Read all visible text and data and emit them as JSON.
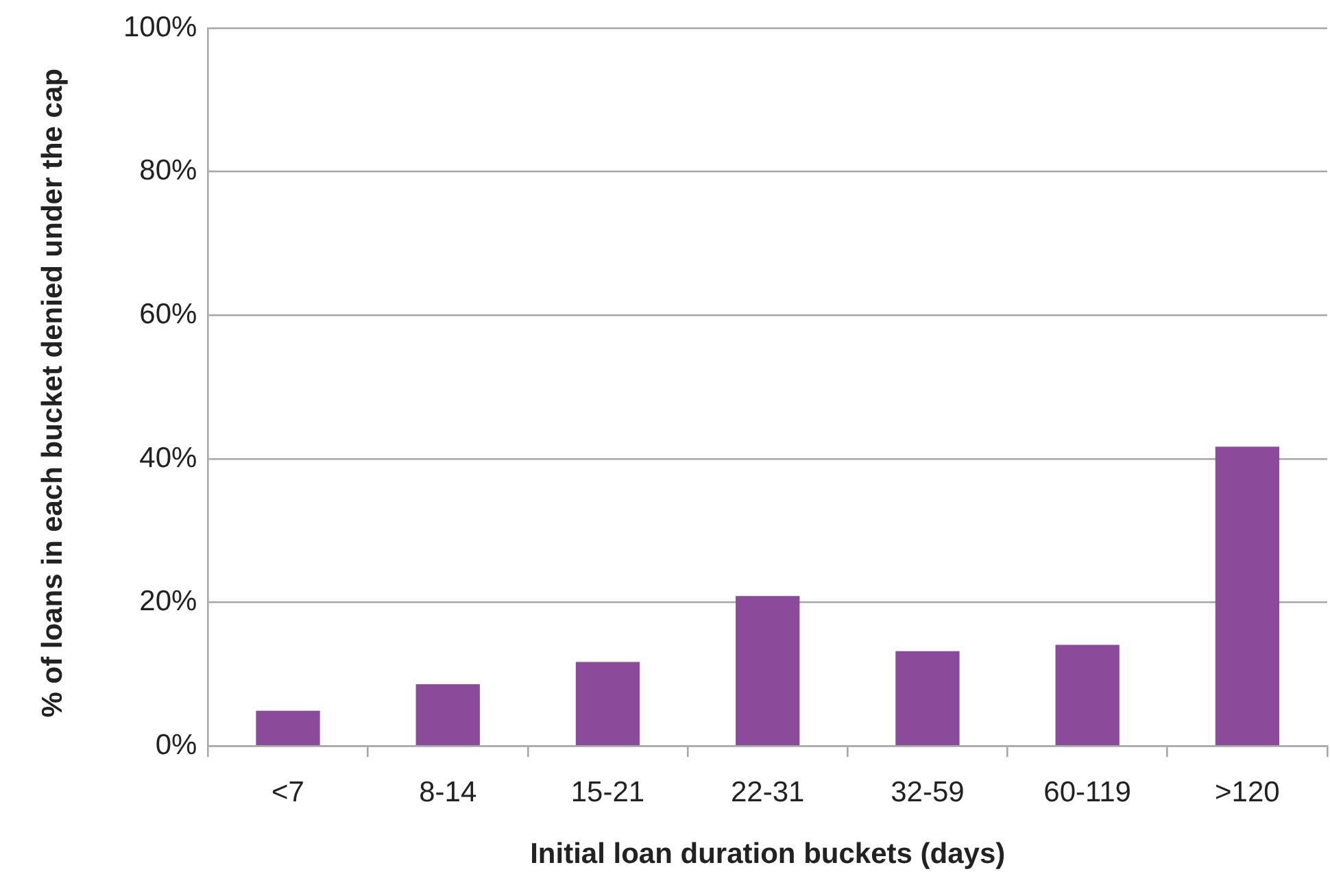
{
  "chart_data": {
    "type": "bar",
    "xlabel": "Initial loan duration buckets (days)",
    "ylabel": "% of loans in each bucket denied under the cap",
    "categories": [
      "<7",
      "8-14",
      "15-21",
      "22-31",
      "32-59",
      "60-119",
      ">120"
    ],
    "values": [
      4.9,
      8.6,
      11.7,
      20.9,
      13.2,
      14.1,
      41.7
    ],
    "color": "#8b4a9a",
    "ylim": [
      0,
      100
    ],
    "yticks": [
      {
        "value": 0,
        "label": "0%"
      },
      {
        "value": 20,
        "label": "20%"
      },
      {
        "value": 40,
        "label": "40%"
      },
      {
        "value": 60,
        "label": "60%"
      },
      {
        "value": 80,
        "label": "80%"
      },
      {
        "value": 100,
        "label": "100%"
      }
    ],
    "grid": "y"
  }
}
